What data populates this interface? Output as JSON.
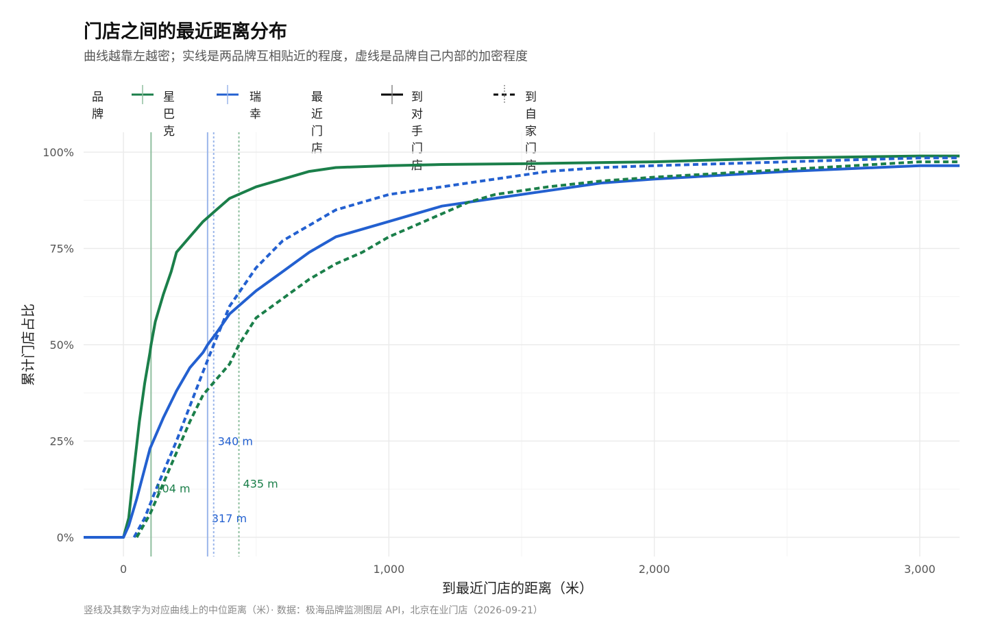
{
  "header": {
    "title": "门店之间的最近距离分布",
    "subtitle": "曲线越靠左越密；实线是两品牌互相贴近的程度，虚线是品牌自己内部的加密程度"
  },
  "legend": {
    "brand_title": "品牌",
    "brand_items": [
      {
        "label": "星巴克",
        "color": "#1b7f4a"
      },
      {
        "label": "瑞幸",
        "color": "#2360d0"
      }
    ],
    "type_title": "最近门店",
    "type_items": [
      {
        "label": "到对手门店",
        "style": "solid"
      },
      {
        "label": "到自家门店",
        "style": "dashed"
      }
    ]
  },
  "footnote": "竖线及其数字为对应曲线上的中位距离（米）· 数据：极海品牌监测图层 API，北京在业门店（2026-09-21）",
  "chart_data": {
    "type": "line",
    "title": "门店之间的最近距离分布",
    "subtitle": "曲线越靠左越密；实线是两品牌互相贴近的程度，虚线是品牌自己内部的加密程度",
    "xlabel": "到最近门店的距离（米）",
    "ylabel": "累计门店占比",
    "xlim": [
      -150,
      3150
    ],
    "ylim": [
      0,
      1
    ],
    "x_ticks": [
      0,
      1000,
      2000,
      3000
    ],
    "x_tick_labels": [
      "0",
      "1,000",
      "2,000",
      "3,000"
    ],
    "y_ticks": [
      0,
      0.25,
      0.5,
      0.75,
      1.0
    ],
    "y_tick_labels": [
      "0%",
      "25%",
      "50%",
      "75%",
      "100%"
    ],
    "grid": true,
    "legend_position": "top-left",
    "series": [
      {
        "name": "星巴克",
        "type_label": "到对手门店",
        "color": "#1b7f4a",
        "dash": "solid",
        "x": [
          -150,
          0,
          20,
          40,
          60,
          80,
          100,
          104,
          120,
          150,
          180,
          200,
          250,
          300,
          350,
          400,
          500,
          600,
          700,
          800,
          1000,
          1200,
          1500,
          2000,
          2500,
          3000,
          3150
        ],
        "y": [
          0,
          0,
          0.05,
          0.18,
          0.3,
          0.4,
          0.48,
          0.5,
          0.56,
          0.63,
          0.69,
          0.74,
          0.78,
          0.82,
          0.85,
          0.88,
          0.91,
          0.93,
          0.95,
          0.96,
          0.965,
          0.968,
          0.97,
          0.975,
          0.985,
          0.99,
          0.99
        ]
      },
      {
        "name": "瑞幸",
        "type_label": "到对手门店",
        "color": "#2360d0",
        "dash": "solid",
        "x": [
          -150,
          0,
          20,
          50,
          100,
          150,
          200,
          250,
          300,
          317,
          350,
          400,
          500,
          600,
          700,
          800,
          1000,
          1200,
          1400,
          1600,
          1800,
          2000,
          2500,
          3000,
          3150
        ],
        "y": [
          0,
          0,
          0.03,
          0.1,
          0.23,
          0.31,
          0.38,
          0.44,
          0.48,
          0.5,
          0.53,
          0.58,
          0.64,
          0.69,
          0.74,
          0.78,
          0.82,
          0.86,
          0.88,
          0.9,
          0.92,
          0.93,
          0.95,
          0.965,
          0.965
        ]
      },
      {
        "name": "瑞幸",
        "type_label": "到自家门店",
        "color": "#2360d0",
        "dash": "dashed",
        "x": [
          40,
          80,
          120,
          200,
          250,
          300,
          340,
          400,
          500,
          600,
          700,
          800,
          1000,
          1200,
          1400,
          1600,
          1800,
          2000,
          2500,
          3000,
          3150
        ],
        "y": [
          0,
          0.05,
          0.12,
          0.25,
          0.34,
          0.43,
          0.5,
          0.6,
          0.7,
          0.77,
          0.81,
          0.85,
          0.89,
          0.91,
          0.93,
          0.95,
          0.96,
          0.965,
          0.975,
          0.985,
          0.985
        ]
      },
      {
        "name": "星巴克",
        "type_label": "到自家门店",
        "color": "#1b7f4a",
        "dash": "dashed",
        "x": [
          50,
          100,
          150,
          200,
          250,
          300,
          350,
          400,
          435,
          500,
          600,
          700,
          800,
          900,
          1000,
          1100,
          1200,
          1300,
          1400,
          1600,
          1800,
          2000,
          2500,
          3000,
          3150
        ],
        "y": [
          0,
          0.06,
          0.14,
          0.22,
          0.3,
          0.37,
          0.41,
          0.45,
          0.5,
          0.57,
          0.62,
          0.67,
          0.71,
          0.74,
          0.78,
          0.81,
          0.84,
          0.87,
          0.89,
          0.91,
          0.925,
          0.935,
          0.955,
          0.975,
          0.975
        ]
      }
    ],
    "medians": [
      {
        "value": 104,
        "label": "104 m",
        "color": "#1b7f4a",
        "dash": "solid"
      },
      {
        "value": 317,
        "label": "317 m",
        "color": "#2360d0",
        "dash": "solid"
      },
      {
        "value": 340,
        "label": "340 m",
        "color": "#2360d0",
        "dash": "dotted"
      },
      {
        "value": 435,
        "label": "435 m",
        "color": "#1b7f4a",
        "dash": "dotted"
      }
    ]
  }
}
